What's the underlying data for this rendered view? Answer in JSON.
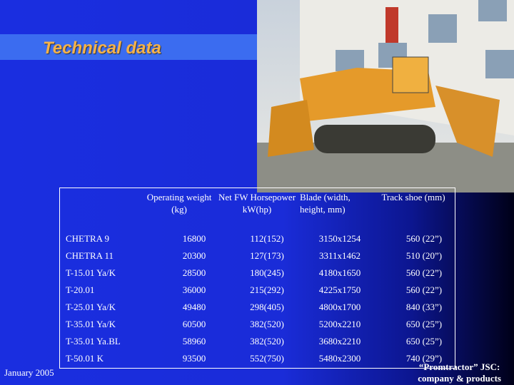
{
  "header": {
    "title": "Technical data"
  },
  "table": {
    "columns": [
      "Operating weight (kg)",
      "Net FW Horsepower kW(hp)",
      "Blade (width, height, mm)",
      "Track shoe (mm)"
    ],
    "rows": [
      [
        "CHETRA 9",
        "16800",
        "112(152)",
        "3150x1254",
        "560 (22”)"
      ],
      [
        "CHETRA 11",
        "20300",
        "127(173)",
        "3311x1462",
        "510 (20”)"
      ],
      [
        "T-15.01 Ya/K",
        "28500",
        "180(245)",
        "4180x1650",
        "560 (22”)"
      ],
      [
        "T-20.01",
        "36000",
        "215(292)",
        "4225x1750",
        "560 (22”)"
      ],
      [
        "T-25.01 Ya/K",
        "49480",
        "298(405)",
        "4800x1700",
        "840 (33”)"
      ],
      [
        "T-35.01 Ya/K",
        "60500",
        "382(520)",
        "5200x2210",
        "650 (25”)"
      ],
      [
        "T-35.01 Ya.BL",
        "58960",
        "382(520)",
        "3680x2210",
        "650 (25”)"
      ],
      [
        "T-50.01 K",
        "93500",
        "552(750)",
        "5480x2300",
        "740 (29”)"
      ]
    ]
  },
  "footer": {
    "date": "January 2005",
    "company": [
      "“Promtractor” JSC:",
      "company & products"
    ]
  }
}
